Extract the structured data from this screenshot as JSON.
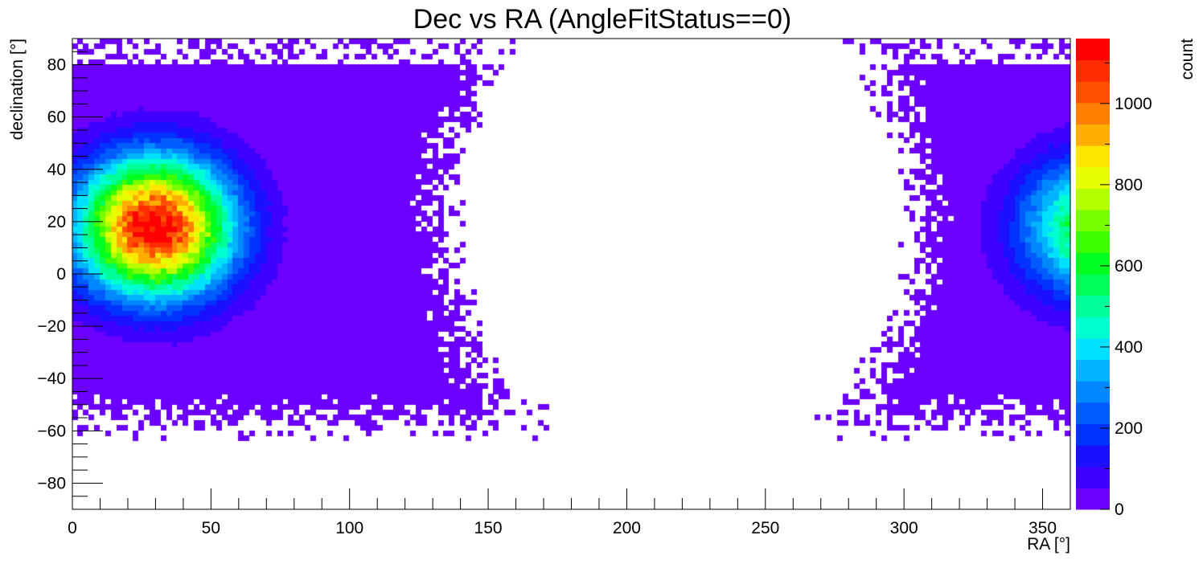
{
  "chart_data": {
    "type": "heatmap",
    "title": "Dec vs RA (AngleFitStatus==0)",
    "xlabel": "RA [°]",
    "ylabel": "declination [°]",
    "zlabel": "count",
    "xlim": [
      0,
      360
    ],
    "ylim": [
      -90,
      90
    ],
    "zlim": [
      0,
      1160
    ],
    "x_ticks": [
      0,
      50,
      100,
      150,
      200,
      250,
      300,
      350
    ],
    "y_ticks": [
      -80,
      -60,
      -40,
      -20,
      0,
      20,
      40,
      60,
      80
    ],
    "z_ticks": [
      0,
      200,
      400,
      600,
      800,
      1000
    ],
    "x_tick_labels": [
      "0",
      "50",
      "100",
      "150",
      "200",
      "250",
      "300",
      "350"
    ],
    "y_tick_labels": [
      "−80",
      "−60",
      "−40",
      "−20",
      "0",
      "20",
      "40",
      "60",
      "80"
    ],
    "z_tick_labels": [
      "0",
      "200",
      "400",
      "600",
      "800",
      "1000"
    ],
    "bin_width_deg": 2,
    "grid": false,
    "colorbar": "right",
    "features": {
      "peak": {
        "ra": 30,
        "dec": 18,
        "count": 1160
      },
      "wraparound_peak": {
        "ra": 370,
        "dec": 18
      },
      "empty_region_center": {
        "ra": 220,
        "dec": 20
      },
      "populated_ra_ranges": [
        [
          0,
          130
        ],
        [
          300,
          360
        ]
      ]
    },
    "palette": [
      "#6b00ff",
      "#3e00ff",
      "#1a10ff",
      "#0033ff",
      "#005cff",
      "#0088ff",
      "#00b4ff",
      "#00e0ff",
      "#00ffd0",
      "#00ff9a",
      "#00ff5a",
      "#00ff20",
      "#3cff00",
      "#78ff00",
      "#b4ff00",
      "#e6ff00",
      "#ffe600",
      "#ffae00",
      "#ff8000",
      "#ff5000",
      "#ff2c00",
      "#ff0000"
    ]
  }
}
